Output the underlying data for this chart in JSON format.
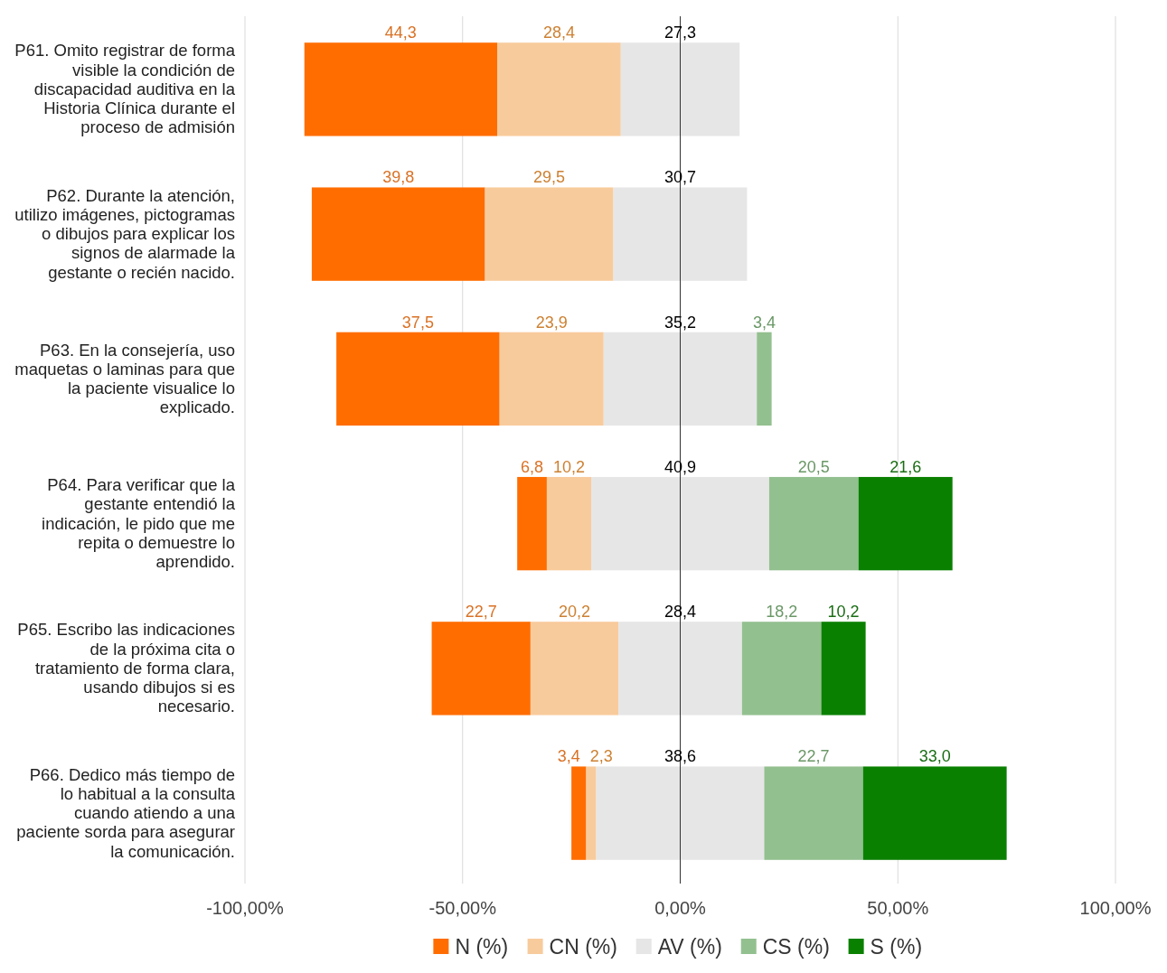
{
  "chart_data": {
    "type": "bar",
    "orientation": "horizontal",
    "categories": [
      "P61. Omito registrar de forma visible la condición de discapacidad auditiva en la Historia Clínica durante el proceso de admisión",
      "P62. Durante la atención, utilizo imágenes, pictogramas o dibujos para explicar los signos de alarmade la gestante o recién nacido.",
      "P63. En la consejería, uso maquetas o laminas para que la paciente visualice lo explicado.",
      "P64. Para verificar que la gestante entendió la indicación, le pido que me repita o demuestre lo aprendido.",
      "P65. Escribo las indicaciones de la próxima cita o tratamiento de forma clara, usando dibujos si es necesario.",
      "P66. Dedico más tiempo de lo habitual a la consulta cuando atiendo a una paciente sorda para asegurar la comunicación."
    ],
    "series": [
      {
        "name": "N (%)",
        "color": "#ff6d01",
        "base": [
          -86.35,
          -84.65,
          -79,
          -37.45,
          -57.1,
          -25
        ],
        "values": [
          44.3,
          39.8,
          37.5,
          6.8,
          22.7,
          3.4
        ],
        "value_labels": [
          "44,3",
          "39,8",
          "37,5",
          "6,8",
          "22,7",
          "3,4"
        ]
      },
      {
        "name": "CN (%)",
        "color": "#f8cb9c",
        "base": [
          -42.05,
          -44.85,
          -41.5,
          -30.65,
          -34.4,
          -21.6
        ],
        "values": [
          28.4,
          29.5,
          23.9,
          10.2,
          20.2,
          2.3
        ],
        "value_labels": [
          "28,4",
          "29,5",
          "23,9",
          "10,2",
          "20,2",
          "2,3"
        ]
      },
      {
        "name": "AV (%)",
        "color": "#e6e6e6",
        "base": [
          -13.65,
          -15.35,
          -17.6,
          -20.45,
          -14.2,
          -19.3
        ],
        "values": [
          27.3,
          30.7,
          35.2,
          40.9,
          28.4,
          38.6
        ],
        "value_labels": [
          "27,3",
          "30,7",
          "35,2",
          "40,9",
          "28,4",
          "38,6"
        ]
      },
      {
        "name": "CS (%)",
        "color": "#93c08f",
        "base": [
          null,
          null,
          17.6,
          20.45,
          14.2,
          19.3
        ],
        "values": [
          null,
          null,
          3.4,
          20.5,
          18.2,
          22.7
        ],
        "value_labels": [
          null,
          null,
          "3,4",
          "20,5",
          "18,2",
          "22,7"
        ]
      },
      {
        "name": "S (%)",
        "color": "#0a8001",
        "base": [
          null,
          null,
          null,
          40.95,
          32.4,
          42.0
        ],
        "values": [
          null,
          null,
          null,
          21.6,
          10.2,
          33.0
        ],
        "value_labels": [
          null,
          null,
          null,
          "21,6",
          "10,2",
          "33,0"
        ]
      }
    ],
    "xlim": [
      -100,
      100
    ],
    "xticks": [
      {
        "value": -100,
        "label": "-100,00%"
      },
      {
        "value": -50,
        "label": "-50,00%"
      },
      {
        "value": 0,
        "label": "0,00%"
      },
      {
        "value": 50,
        "label": "50,00%"
      },
      {
        "value": 100,
        "label": "100,00%"
      }
    ],
    "grid": "x",
    "legend": "bottom"
  }
}
